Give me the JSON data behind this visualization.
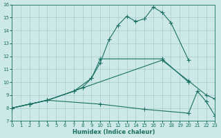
{
  "xlabel": "Humidex (Indice chaleur)",
  "background_color": "#cce8e8",
  "grid_color": "#aacccc",
  "line_color": "#1a7060",
  "xlim": [
    0,
    23
  ],
  "ylim": [
    7,
    16
  ],
  "xticks": [
    0,
    1,
    2,
    3,
    4,
    5,
    6,
    7,
    8,
    9,
    10,
    11,
    12,
    13,
    14,
    15,
    16,
    17,
    18,
    19,
    20,
    21,
    22,
    23
  ],
  "yticks": [
    7,
    8,
    9,
    10,
    11,
    12,
    13,
    14,
    15,
    16
  ],
  "lines": [
    {
      "x": [
        0,
        2,
        4,
        7,
        9,
        10,
        11,
        12,
        13,
        14,
        15,
        16,
        17,
        18,
        20
      ],
      "y": [
        8.0,
        8.3,
        8.6,
        9.3,
        10.3,
        11.5,
        13.3,
        14.4,
        15.1,
        14.7,
        14.9,
        15.8,
        15.4,
        14.6,
        11.7
      ]
    },
    {
      "x": [
        0,
        2,
        4,
        7,
        8,
        9,
        10,
        17,
        20
      ],
      "y": [
        8.0,
        8.3,
        8.6,
        9.3,
        9.6,
        10.3,
        11.8,
        11.8,
        10.0
      ]
    },
    {
      "x": [
        0,
        2,
        4,
        17,
        20,
        22,
        23
      ],
      "y": [
        8.0,
        8.3,
        8.6,
        11.7,
        10.1,
        9.0,
        8.7
      ]
    },
    {
      "x": [
        0,
        2,
        4,
        10,
        15,
        20,
        21,
        22,
        23
      ],
      "y": [
        8.0,
        8.3,
        8.6,
        8.3,
        7.9,
        7.6,
        9.3,
        8.5,
        7.4
      ]
    }
  ]
}
